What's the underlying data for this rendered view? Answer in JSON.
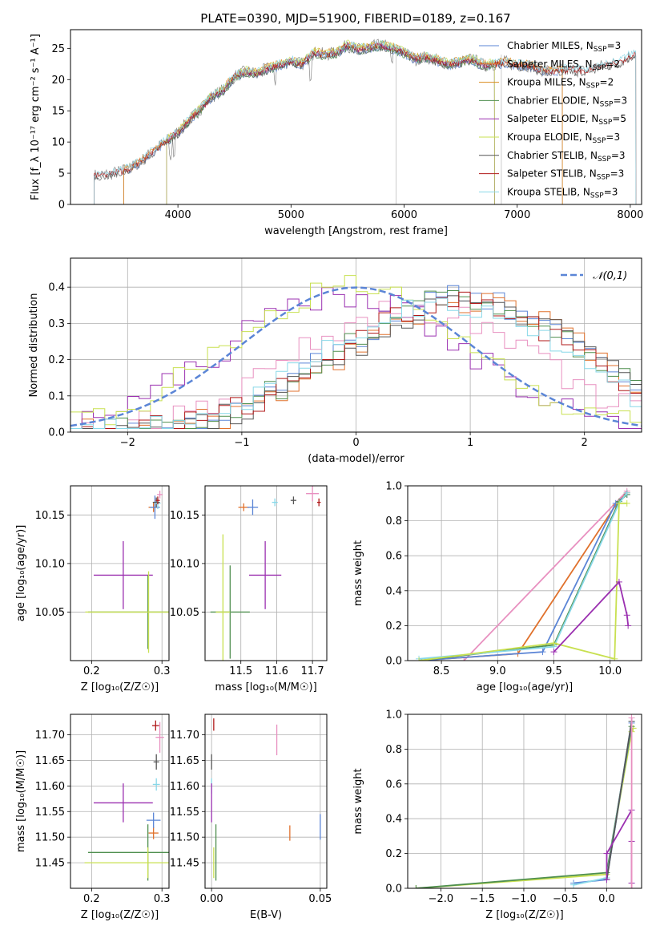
{
  "figure_title": "PLATE=0390, MJD=51900, FIBERID=0189, z=0.167",
  "chart_data": [
    {
      "id": "spectrum",
      "type": "line",
      "title": "PLATE=0390, MJD=51900, FIBERID=0189, z=0.167",
      "xlabel": "wavelength [Angstrom, rest frame]",
      "ylabel": "Flux [f_λ 10⁻¹⁷ erg cm⁻² s⁻¹ A⁻¹]",
      "xlim": [
        3050,
        8100
      ],
      "ylim": [
        0,
        28
      ],
      "xticks": [
        4000,
        5000,
        6000,
        7000,
        8000
      ],
      "yticks": [
        0,
        5,
        10,
        15,
        20,
        25
      ],
      "grid": false,
      "legend_position": "top-right",
      "continuum_x": [
        3260,
        3400,
        3500,
        3600,
        3700,
        3800,
        3900,
        4000,
        4100,
        4200,
        4300,
        4400,
        4500,
        4600,
        4700,
        4800,
        4900,
        5000,
        5100,
        5200,
        5300,
        5400,
        5500,
        5600,
        5700,
        5800,
        5900,
        6000,
        6100,
        6200,
        6300,
        6400,
        6500,
        6600,
        6700,
        6800,
        6900,
        7000,
        7100,
        7200,
        7300,
        7400,
        7500,
        7600,
        7700,
        7800,
        7900,
        8000,
        8050
      ],
      "continuum_y": [
        4.6,
        4.9,
        5.3,
        6.0,
        7.3,
        8.8,
        10.2,
        11.5,
        13.5,
        15.3,
        17.3,
        18.3,
        20.5,
        21.3,
        21.0,
        21.8,
        22.3,
        23.0,
        22.5,
        24.3,
        24.0,
        24.3,
        25.5,
        24.8,
        25.2,
        25.5,
        25.0,
        24.3,
        23.3,
        23.6,
        23.0,
        22.5,
        22.8,
        23.3,
        22.3,
        22.5,
        22.8,
        22.3,
        22.3,
        21.6,
        21.4,
        21.5,
        21.6,
        21.3,
        22.0,
        22.3,
        22.8,
        23.8,
        24.2
      ],
      "series": [
        {
          "name": "Chabrier MILES, N_SSP=3",
          "color": "#5b85d6",
          "x_start": 3520,
          "x_end": 7400
        },
        {
          "name": "Salpeter MILES, N_SSP=2",
          "color": "#e0712c",
          "x_start": 3520,
          "x_end": 7400
        },
        {
          "name": "Kroupa MILES, N_SSP=2",
          "color": "#d98a1c",
          "x_start": 3520,
          "x_end": 7400
        },
        {
          "name": "Chabrier ELODIE, N_SSP=3",
          "color": "#4f8f4f",
          "x_start": 3900,
          "x_end": 6800
        },
        {
          "name": "Salpeter ELODIE, N_SSP=5",
          "color": "#9b30b0",
          "x_start": 3900,
          "x_end": 6800
        },
        {
          "name": "Kroupa ELODIE, N_SSP=3",
          "color": "#c8e050",
          "x_start": 3900,
          "x_end": 6800
        },
        {
          "name": "Chabrier STELIB, N_SSP=3",
          "color": "#555555",
          "x_start": 3260,
          "x_end": 8050
        },
        {
          "name": "Salpeter STELIB, N_SSP=3",
          "color": "#b01818",
          "x_start": 3260,
          "x_end": 8050
        },
        {
          "name": "Kroupa STELIB, N_SSP=3",
          "color": "#88d8e8",
          "x_start": 3260,
          "x_end": 8050
        }
      ],
      "data_line": {
        "name": "observed spectrum",
        "color": "#888888"
      }
    },
    {
      "id": "residuals",
      "type": "line",
      "xlabel": "(data-model)/error",
      "ylabel": "Normed distribution",
      "xlim": [
        -2.5,
        2.5
      ],
      "ylim": [
        0,
        0.48
      ],
      "xticks": [
        -2,
        -1,
        0,
        1,
        2
      ],
      "yticks": [
        0.0,
        0.1,
        0.2,
        0.3,
        0.4
      ],
      "grid": true,
      "legend_position": "top-right",
      "legend": "𝒩(0,1)",
      "gaussian": {
        "mean": 0,
        "sigma": 1,
        "color": "#5b85d6"
      },
      "series": [
        {
          "color": "#5b85d6",
          "mu": 0.9,
          "amp": 0.37
        },
        {
          "color": "#e0712c",
          "mu": 1.0,
          "amp": 0.36
        },
        {
          "color": "#e890c0",
          "mu": 0.5,
          "amp": 0.34
        },
        {
          "color": "#4f8f4f",
          "mu": 0.9,
          "amp": 0.37
        },
        {
          "color": "#9b30b0",
          "mu": -0.1,
          "amp": 0.38
        },
        {
          "color": "#c8e050",
          "mu": -0.05,
          "amp": 0.4
        },
        {
          "color": "#555555",
          "mu": 1.0,
          "amp": 0.36
        },
        {
          "color": "#b01818",
          "mu": 0.9,
          "amp": 0.37
        },
        {
          "color": "#88d8e8",
          "mu": 0.8,
          "amp": 0.36
        }
      ]
    },
    {
      "id": "age-vs-z",
      "type": "scatter",
      "xlabel": "Z [log₁₀(Z/Z☉)]",
      "ylabel": "age  [log₁₀(age/yr)]",
      "xlim": [
        0.17,
        0.31
      ],
      "ylim": [
        10.0,
        10.18
      ],
      "xticks": [
        0.2,
        0.3
      ],
      "yticks": [
        10.05,
        10.1,
        10.15
      ],
      "grid": true,
      "points": [
        {
          "x": 0.245,
          "y": 10.088,
          "xerr": 0.042,
          "yerr": 0.035,
          "color": "#9b30b0"
        },
        {
          "x": 0.28,
          "y": 10.05,
          "xerr": 0.085,
          "yerr": 0.038,
          "color": "#4f8f4f"
        },
        {
          "x": 0.281,
          "y": 10.05,
          "xerr": 0.09,
          "yerr": 0.042,
          "color": "#c8e050"
        },
        {
          "x": 0.288,
          "y": 10.158,
          "xerr": 0.007,
          "yerr": 0.005,
          "color": "#e0712c"
        },
        {
          "x": 0.29,
          "y": 10.158,
          "xerr": 0.007,
          "yerr": 0.012,
          "color": "#5b85d6"
        },
        {
          "x": 0.292,
          "y": 10.163,
          "xerr": 0.005,
          "yerr": 0.005,
          "color": "#555555"
        },
        {
          "x": 0.297,
          "y": 10.171,
          "xerr": 0.004,
          "yerr": 0.004,
          "color": "#e890c0"
        },
        {
          "x": 0.294,
          "y": 10.162,
          "xerr": 0.004,
          "yerr": 0.006,
          "color": "#88d8e8"
        },
        {
          "x": 0.294,
          "y": 10.165,
          "xerr": 0.003,
          "yerr": 0.004,
          "color": "#b01818"
        }
      ]
    },
    {
      "id": "age-vs-mass",
      "type": "scatter",
      "xlabel": "mass [log₁₀(M/M☉)]",
      "ylabel": "",
      "xlim": [
        11.4,
        11.74
      ],
      "ylim": [
        10.0,
        10.18
      ],
      "xticks": [
        11.5,
        11.6,
        11.7
      ],
      "yticks": [
        10.05,
        10.1,
        10.15
      ],
      "grid": true,
      "points": [
        {
          "x": 11.568,
          "y": 10.088,
          "xerr": 0.045,
          "yerr": 0.035,
          "color": "#9b30b0"
        },
        {
          "x": 11.47,
          "y": 10.05,
          "xerr": 0.055,
          "yerr": 0.048,
          "color": "#4f8f4f"
        },
        {
          "x": 11.45,
          "y": 10.05,
          "xerr": 0.02,
          "yerr": 0.08,
          "color": "#c8e050"
        },
        {
          "x": 11.508,
          "y": 10.158,
          "xerr": 0.015,
          "yerr": 0.004,
          "color": "#e0712c"
        },
        {
          "x": 11.533,
          "y": 10.158,
          "xerr": 0.015,
          "yerr": 0.008,
          "color": "#5b85d6"
        },
        {
          "x": 11.647,
          "y": 10.165,
          "xerr": 0.008,
          "yerr": 0.004,
          "color": "#555555"
        },
        {
          "x": 11.595,
          "y": 10.163,
          "xerr": 0.008,
          "yerr": 0.004,
          "color": "#88d8e8"
        },
        {
          "x": 11.7,
          "y": 10.172,
          "xerr": 0.018,
          "yerr": 0.008,
          "color": "#e890c0"
        },
        {
          "x": 11.718,
          "y": 10.163,
          "xerr": 0.005,
          "yerr": 0.004,
          "color": "#b01818"
        }
      ]
    },
    {
      "id": "massweight-vs-age",
      "type": "line",
      "xlabel": "age  [log₁₀(age/yr)]",
      "ylabel": "mass weight",
      "xlim": [
        8.2,
        10.28
      ],
      "ylim": [
        0,
        1.0
      ],
      "xticks": [
        8.5,
        9.0,
        9.5,
        10.0
      ],
      "yticks": [
        0.0,
        0.2,
        0.4,
        0.6,
        0.8,
        1.0
      ],
      "grid": true,
      "series": [
        {
          "color": "#e890c0",
          "x": [
            8.7,
            10.15
          ],
          "y": [
            0.0,
            0.97
          ]
        },
        {
          "color": "#e0712c",
          "x": [
            8.3,
            9.18,
            10.05,
            10.15
          ],
          "y": [
            0.0,
            0.04,
            0.89,
            0.96
          ]
        },
        {
          "color": "#5b85d6",
          "x": [
            8.3,
            9.4,
            10.05,
            10.15
          ],
          "y": [
            0.0,
            0.05,
            0.9,
            0.95
          ]
        },
        {
          "color": "#4f8f4f",
          "x": [
            8.3,
            9.5,
            10.08,
            10.15
          ],
          "y": [
            0.0,
            0.09,
            0.91,
            0.95
          ]
        },
        {
          "color": "#88d8e8",
          "x": [
            8.3,
            9.5,
            10.08,
            10.15
          ],
          "y": [
            0.01,
            0.08,
            0.9,
            0.96
          ]
        },
        {
          "color": "#c8e050",
          "x": [
            8.3,
            9.5,
            10.04,
            10.08,
            10.15
          ],
          "y": [
            0.0,
            0.1,
            0.01,
            0.9,
            0.9
          ]
        },
        {
          "color": "#9b30b0",
          "x": [
            9.5,
            10.08,
            10.15,
            10.16
          ],
          "y": [
            0.05,
            0.45,
            0.26,
            0.2
          ]
        }
      ]
    },
    {
      "id": "mass-vs-z",
      "type": "scatter",
      "xlabel": "Z [log₁₀(Z/Z☉)]",
      "ylabel": "mass [log₁₀(M/M☉)]",
      "xlim": [
        0.17,
        0.31
      ],
      "ylim": [
        11.4,
        11.74
      ],
      "xticks": [
        0.2,
        0.3
      ],
      "yticks": [
        11.45,
        11.5,
        11.55,
        11.6,
        11.65,
        11.7
      ],
      "grid": true,
      "points": [
        {
          "x": 0.245,
          "y": 11.567,
          "xerr": 0.042,
          "yerr": 0.038,
          "color": "#9b30b0"
        },
        {
          "x": 0.28,
          "y": 11.47,
          "xerr": 0.085,
          "yerr": 0.055,
          "color": "#4f8f4f"
        },
        {
          "x": 0.28,
          "y": 11.45,
          "xerr": 0.09,
          "yerr": 0.03,
          "color": "#c8e050"
        },
        {
          "x": 0.288,
          "y": 11.508,
          "xerr": 0.007,
          "yerr": 0.012,
          "color": "#e0712c"
        },
        {
          "x": 0.288,
          "y": 11.533,
          "xerr": 0.01,
          "yerr": 0.015,
          "color": "#5b85d6"
        },
        {
          "x": 0.292,
          "y": 11.647,
          "xerr": 0.004,
          "yerr": 0.015,
          "color": "#555555"
        },
        {
          "x": 0.292,
          "y": 11.603,
          "xerr": 0.005,
          "yerr": 0.012,
          "color": "#88d8e8"
        },
        {
          "x": 0.297,
          "y": 11.695,
          "xerr": 0.006,
          "yerr": 0.03,
          "color": "#e890c0"
        },
        {
          "x": 0.291,
          "y": 11.718,
          "xerr": 0.005,
          "yerr": 0.01,
          "color": "#b01818"
        }
      ]
    },
    {
      "id": "mass-vs-ebv",
      "type": "scatter",
      "xlabel": "E(B-V)",
      "ylabel": "",
      "xlim": [
        -0.003,
        0.053
      ],
      "ylim": [
        11.4,
        11.74
      ],
      "xticks": [
        0.0,
        0.05
      ],
      "yticks": [
        11.45,
        11.5,
        11.55,
        11.6,
        11.65,
        11.7
      ],
      "grid": true,
      "points": [
        {
          "x": 0.001,
          "y": 11.72,
          "xerr": 0.0,
          "yerr": 0.012,
          "color": "#b01818"
        },
        {
          "x": 0.0,
          "y": 11.647,
          "xerr": 0.0,
          "yerr": 0.015,
          "color": "#555555"
        },
        {
          "x": 0.0,
          "y": 11.6,
          "xerr": 0.0,
          "yerr": 0.015,
          "color": "#88d8e8"
        },
        {
          "x": 0.0,
          "y": 11.567,
          "xerr": 0.0,
          "yerr": 0.038,
          "color": "#9b30b0"
        },
        {
          "x": 0.002,
          "y": 11.47,
          "xerr": 0.0,
          "yerr": 0.055,
          "color": "#4f8f4f"
        },
        {
          "x": 0.001,
          "y": 11.45,
          "xerr": 0.0,
          "yerr": 0.03,
          "color": "#c8e050"
        },
        {
          "x": 0.03,
          "y": 11.69,
          "xerr": 0.0,
          "yerr": 0.03,
          "color": "#e890c0"
        },
        {
          "x": 0.036,
          "y": 11.508,
          "xerr": 0.0,
          "yerr": 0.015,
          "color": "#e0712c"
        },
        {
          "x": 0.05,
          "y": 11.52,
          "xerr": 0.0,
          "yerr": 0.025,
          "color": "#5b85d6"
        }
      ]
    },
    {
      "id": "massweight-vs-z",
      "type": "line",
      "xlabel": "Z [log₁₀(Z/Z☉)]",
      "ylabel": "mass weight",
      "xlim": [
        -2.4,
        0.42
      ],
      "ylim": [
        0,
        1.0
      ],
      "xticks": [
        -2.0,
        -1.5,
        -1.0,
        -0.5,
        0.0
      ],
      "yticks": [
        0.0,
        0.2,
        0.4,
        0.6,
        0.8,
        1.0
      ],
      "grid": true,
      "series": [
        {
          "color": "#c8e050",
          "x": [
            -2.3,
            0.0,
            0.3,
            0.32
          ],
          "y": [
            0.0,
            0.08,
            0.9,
            0.92
          ]
        },
        {
          "color": "#4f8f4f",
          "x": [
            -2.3,
            0.0,
            0.3
          ],
          "y": [
            0.0,
            0.09,
            0.93
          ]
        },
        {
          "color": "#5b85d6",
          "x": [
            -0.4,
            0.0,
            0.3
          ],
          "y": [
            0.03,
            0.05,
            0.95
          ]
        },
        {
          "color": "#88d8e8",
          "x": [
            -0.4,
            0.0,
            0.3
          ],
          "y": [
            0.02,
            0.06,
            0.96
          ]
        },
        {
          "color": "#555555",
          "x": [
            0.0,
            0.3
          ],
          "y": [
            0.05,
            0.96
          ]
        },
        {
          "color": "#9b30b0",
          "x": [
            0.0,
            0.0,
            0.3,
            0.3,
            0.3
          ],
          "y": [
            0.05,
            0.2,
            0.45,
            0.27,
            0.03
          ]
        },
        {
          "color": "#e890c0",
          "x": [
            0.3,
            0.3
          ],
          "y": [
            0.0,
            0.98
          ]
        }
      ]
    }
  ]
}
